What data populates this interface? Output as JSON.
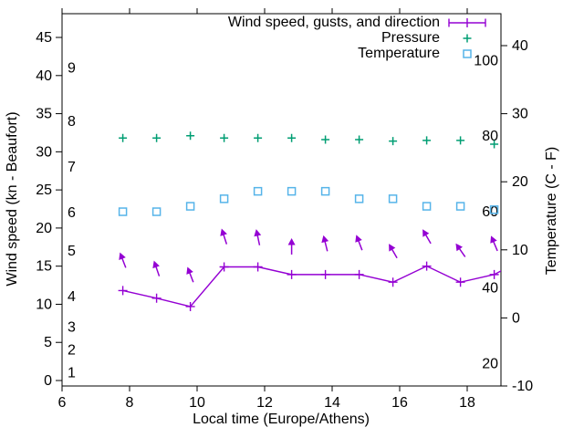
{
  "chart_data": {
    "type": "line",
    "title": "",
    "xlabel": "Local time (Europe/Athens)",
    "ylabel_left": "Wind speed (kn - Beaufort)",
    "ylabel_right": "Temperature (C - F)",
    "grid": "off",
    "legend_position": "top-right-inside",
    "colors": {
      "wind": "#9400d3",
      "pressure": "#009e73",
      "temperature": "#56b4e9",
      "text": "#000000",
      "border": "#000000"
    },
    "axes": {
      "x": {
        "range": [
          6,
          19
        ],
        "ticks": [
          6,
          8,
          10,
          12,
          14,
          16,
          18
        ]
      },
      "left": {
        "unit": "kn",
        "range": [
          0,
          48
        ],
        "ticks": [
          0,
          5,
          10,
          15,
          20,
          25,
          30,
          35,
          40,
          45
        ],
        "beaufort_inner_labels": [
          {
            "label": "1",
            "kn": 1
          },
          {
            "label": "2",
            "kn": 4
          },
          {
            "label": "3",
            "kn": 7
          },
          {
            "label": "4",
            "kn": 11
          },
          {
            "label": "5",
            "kn": 17
          },
          {
            "label": "6",
            "kn": 22
          },
          {
            "label": "7",
            "kn": 28
          },
          {
            "label": "8",
            "kn": 34
          },
          {
            "label": "9",
            "kn": 41
          }
        ]
      },
      "right": {
        "unit": "C",
        "range": [
          -10,
          45
        ],
        "ticks": [
          -10,
          0,
          10,
          20,
          30,
          40
        ],
        "fahrenheit_inner_labels": [
          {
            "label": "20",
            "c": -6.7
          },
          {
            "label": "40",
            "c": 4.4
          },
          {
            "label": "60",
            "c": 15.6
          },
          {
            "label": "80",
            "c": 26.7
          },
          {
            "label": "100",
            "c": 37.8
          }
        ]
      }
    },
    "x": [
      7.8,
      8.8,
      9.8,
      10.8,
      11.8,
      12.8,
      13.8,
      14.8,
      15.8,
      16.8,
      17.8,
      18.8
    ],
    "series": [
      {
        "name": "Wind speed, gusts, and direction",
        "marker": "plus-line",
        "axis": "left_kn",
        "color": "#9400d3",
        "values": [
          11.8,
          10.8,
          9.7,
          14.9,
          14.9,
          13.9,
          13.9,
          13.9,
          12.9,
          15.0,
          12.9,
          13.9
        ],
        "edge_continuation": {
          "t": 19.1,
          "kn": 14.6
        }
      },
      {
        "name": "Pressure",
        "marker": "plus",
        "axis": "unlabeled (plotted on left axis scale)",
        "color": "#009e73",
        "values": [
          31.8,
          31.8,
          32.1,
          31.8,
          31.8,
          31.8,
          31.6,
          31.6,
          31.4,
          31.5,
          31.5,
          31.0
        ]
      },
      {
        "name": "Temperature",
        "marker": "square",
        "axis": "right_c",
        "color": "#56b4e9",
        "values": [
          15.6,
          15.6,
          16.4,
          17.5,
          18.6,
          18.6,
          18.6,
          17.5,
          17.5,
          16.4,
          16.4,
          15.9
        ]
      }
    ],
    "wind_arrows": {
      "color": "#9400d3",
      "note": "direction arrows above wind line, angle_deg: 0 = up, negative = tilted left",
      "points": [
        {
          "t": 7.8,
          "kn": 15.8,
          "angle_deg": -21
        },
        {
          "t": 8.8,
          "kn": 14.7,
          "angle_deg": -19
        },
        {
          "t": 9.8,
          "kn": 13.9,
          "angle_deg": -21
        },
        {
          "t": 10.8,
          "kn": 18.9,
          "angle_deg": -18
        },
        {
          "t": 11.8,
          "kn": 18.8,
          "angle_deg": -12
        },
        {
          "t": 12.8,
          "kn": 17.6,
          "angle_deg": 0
        },
        {
          "t": 13.8,
          "kn": 18.0,
          "angle_deg": -14
        },
        {
          "t": 14.8,
          "kn": 18.1,
          "angle_deg": -21
        },
        {
          "t": 15.8,
          "kn": 17.0,
          "angle_deg": -30
        },
        {
          "t": 16.8,
          "kn": 18.9,
          "angle_deg": -30
        },
        {
          "t": 17.8,
          "kn": 17.1,
          "angle_deg": -35
        },
        {
          "t": 18.8,
          "kn": 18.0,
          "angle_deg": -23
        }
      ]
    },
    "legend": {
      "items": [
        {
          "label": "Wind speed, gusts, and direction",
          "sample": "line-with-caps",
          "color": "#9400d3"
        },
        {
          "label": "Pressure",
          "sample": "plus",
          "color": "#009e73"
        },
        {
          "label": "Temperature",
          "sample": "square",
          "color": "#56b4e9"
        }
      ]
    }
  }
}
